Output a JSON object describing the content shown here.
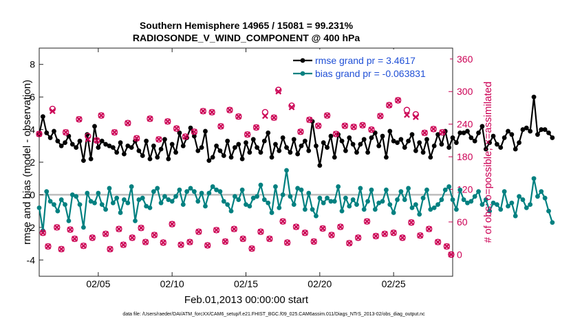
{
  "chart_data": {
    "type": "line",
    "title_line1": "Southern Hemisphere 14965 / 15081 = 99.231%",
    "title_line2": "RADIOSONDE_V_WIND_COMPONENT @ 400 hPa",
    "xlabel": "Feb.01,2013 00:00:00 start",
    "ylabel_left": "rmse and bias (model - observation)",
    "ylabel_right": "# of obs: o=possible; ×=assimilated",
    "footnote": "data file: /Users/raeder/DAI/ATM_forcXX/CAM6_setup/f.e21.FHIST_BGC.f09_025.CAM6assim.011/Diags_NTrS_2013-02/obs_diag_output.nc",
    "x_range_days": [
      1.0,
      29.0
    ],
    "ylim_left": [
      -5,
      9
    ],
    "ylim_right": [
      -40,
      380
    ],
    "x_ticks": [
      {
        "day": 5,
        "label": "02/05"
      },
      {
        "day": 10,
        "label": "02/10"
      },
      {
        "day": 15,
        "label": "02/15"
      },
      {
        "day": 20,
        "label": "02/20"
      },
      {
        "day": 25,
        "label": "02/25"
      }
    ],
    "y_ticks_left": [
      "-4",
      "-2",
      "0",
      "2",
      "4",
      "6",
      "8"
    ],
    "y_ticks_right": [
      "0",
      "60",
      "120",
      "180",
      "240",
      "300",
      "360"
    ],
    "colors": {
      "rmse": "#000000",
      "bias": "#008080",
      "obs": "#cc0055",
      "legend_text": "#1f4fd6",
      "zero_line": "#bdbdbd"
    },
    "legend": [
      {
        "key": "rmse",
        "label": "rmse grand pr = 3.4617"
      },
      {
        "key": "bias",
        "label": "bias grand pr = -0.063831"
      }
    ],
    "x_step_days": 0.25,
    "x_start_day": 1.0,
    "series": [
      {
        "name": "rmse",
        "values": [
          3.7,
          4.8,
          3.8,
          3.5,
          3.9,
          3.3,
          3.0,
          3.2,
          3.6,
          3.1,
          2.9,
          3.3,
          2.1,
          3.7,
          2.2,
          4.2,
          2.9,
          3.3,
          3.1,
          3.0,
          2.9,
          2.6,
          3.2,
          2.5,
          3.0,
          2.9,
          3.3,
          2.7,
          2.4,
          3.3,
          2.2,
          3.0,
          2.3,
          2.8,
          3.4,
          2.2,
          3.1,
          2.6,
          3.8,
          3.0,
          3.5,
          4.1,
          3.6,
          2.7,
          2.9,
          3.9,
          2.1,
          2.3,
          3.0,
          2.7,
          2.4,
          3.3,
          2.3,
          2.9,
          3.1,
          2.2,
          3.2,
          2.6,
          3.4,
          2.9,
          2.6,
          3.3,
          3.8,
          2.3,
          3.1,
          2.7,
          3.5,
          2.9,
          2.6,
          3.4,
          2.5,
          3.0,
          3.3,
          2.7,
          4.5,
          3.0,
          1.8,
          3.2,
          2.9,
          3.6,
          2.3,
          3.7,
          3.3,
          2.7,
          3.5,
          3.1,
          2.6,
          3.1,
          3.4,
          2.6,
          3.5,
          3.8,
          3.0,
          3.6,
          2.3,
          3.9,
          3.3,
          3.2,
          3.4,
          2.9,
          3.3,
          3.7,
          2.7,
          3.2,
          2.6,
          3.4,
          2.3,
          3.0,
          3.7,
          3.1,
          3.9,
          2.9,
          3.5,
          3.2,
          3.8,
          3.8,
          3.9,
          3.5,
          3.3,
          3.8,
          4.2,
          2.8,
          3.2,
          3.6,
          3.1,
          2.9,
          3.5,
          3.9,
          3.7,
          2.8,
          3.2,
          4.0,
          4.1,
          3.9,
          6.0,
          3.7,
          4.0,
          4.0,
          3.8,
          3.5
        ]
      },
      {
        "name": "bias",
        "values": [
          -0.8,
          -2.2,
          0.2,
          -0.4,
          -0.6,
          -1.0,
          -0.3,
          -0.6,
          -1.6,
          0.0,
          -0.1,
          -0.6,
          -2.0,
          0.1,
          -0.4,
          -0.5,
          0.1,
          -0.6,
          -0.9,
          0.4,
          -0.5,
          -0.2,
          -1.1,
          -0.3,
          -0.5,
          0.5,
          -1.6,
          -0.3,
          -0.2,
          -0.7,
          -0.8,
          0.2,
          0.4,
          -0.5,
          -0.1,
          -0.3,
          -0.4,
          -0.1,
          0.3,
          -0.6,
          0.2,
          0.4,
          0.2,
          -0.4,
          0.1,
          -0.7,
          0.1,
          0.5,
          0.3,
          0.2,
          -0.4,
          -0.6,
          -1.0,
          -0.1,
          -0.3,
          0.3,
          -0.6,
          -0.7,
          -0.2,
          -0.1,
          0.6,
          -0.3,
          -0.5,
          -1.1,
          0.5,
          -0.8,
          0.0,
          1.5,
          -0.1,
          -0.6,
          0.4,
          0.3,
          -0.9,
          0.1,
          -0.9,
          -1.3,
          -0.2,
          -0.5,
          -0.2,
          -0.4,
          -0.4,
          0.5,
          -1.0,
          -0.2,
          -0.7,
          -0.3,
          -0.6,
          0.4,
          -0.9,
          -0.4,
          0.3,
          -0.9,
          -0.5,
          -0.4,
          0.3,
          -0.6,
          -1.1,
          -0.3,
          0.2,
          -0.3,
          0.4,
          -0.8,
          -0.6,
          -1.2,
          -0.2,
          0.3,
          -0.9,
          -0.8,
          -0.6,
          -0.3,
          0.3,
          0.5,
          -0.3,
          -0.9,
          0.3,
          -0.3,
          -0.5,
          -0.4,
          -0.1,
          0.2,
          -0.6,
          -0.3,
          -1.0,
          -0.5,
          -0.6,
          -0.9,
          0.2,
          -0.7,
          -0.5,
          -1.3,
          -0.1,
          -0.3,
          -0.8,
          -0.6,
          1.0,
          -0.1,
          0.2,
          -0.2,
          -1.0,
          -1.7
        ]
      },
      {
        "name": "obs_possible",
        "x_days": [
          1.0,
          1.25,
          1.6,
          1.9,
          2.2,
          2.5,
          2.8,
          3.1,
          3.4,
          3.7,
          4.0,
          4.3,
          4.6,
          4.9,
          5.2,
          5.5,
          5.8,
          6.1,
          6.4,
          6.7,
          7.0,
          7.3,
          7.6,
          7.9,
          8.2,
          8.5,
          8.8,
          9.1,
          9.4,
          9.7,
          10.0,
          10.3,
          10.6,
          10.9,
          11.2,
          11.5,
          11.8,
          12.1,
          12.4,
          12.7,
          13.0,
          13.3,
          13.6,
          13.9,
          14.2,
          14.5,
          14.8,
          15.1,
          15.4,
          15.7,
          16.0,
          16.3,
          16.6,
          16.9,
          17.2,
          17.5,
          17.8,
          18.1,
          18.4,
          18.7,
          19.0,
          19.3,
          19.6,
          19.9,
          20.2,
          20.5,
          20.8,
          21.1,
          21.4,
          21.7,
          22.0,
          22.3,
          22.6,
          22.9,
          23.2,
          23.5,
          23.8,
          24.1,
          24.4,
          24.7,
          25.0,
          25.3,
          25.6,
          25.9,
          26.2,
          26.5,
          26.8,
          27.1,
          27.4,
          27.7,
          28.0,
          28.3,
          28.6,
          28.9
        ],
        "values": [
          222,
          40,
          15,
          268,
          50,
          10,
          225,
          46,
          29,
          249,
          16,
          218,
          31,
          210,
          256,
          38,
          10,
          225,
          47,
          18,
          242,
          31,
          214,
          49,
          23,
          250,
          36,
          212,
          22,
          245,
          56,
          232,
          18,
          217,
          23,
          226,
          42,
          264,
          17,
          262,
          45,
          236,
          24,
          266,
          47,
          254,
          29,
          221,
          11,
          234,
          42,
          262,
          29,
          252,
          303,
          61,
          22,
          274,
          51,
          226,
          40,
          248,
          24,
          237,
          48,
          256,
          36,
          222,
          51,
          237,
          21,
          235,
          31,
          238,
          61,
          230,
          34,
          255,
          38,
          275,
          40,
          284,
          31,
          266,
          59,
          258,
          35,
          224,
          47,
          231,
          23,
          225,
          15,
          0
        ]
      },
      {
        "name": "obs_assimilated",
        "x_days": [
          1.0,
          1.25,
          1.6,
          1.9,
          2.2,
          2.5,
          2.8,
          3.1,
          3.4,
          3.7,
          4.0,
          4.3,
          4.6,
          4.9,
          5.2,
          5.5,
          5.8,
          6.1,
          6.4,
          6.7,
          7.0,
          7.3,
          7.6,
          7.9,
          8.2,
          8.5,
          8.8,
          9.1,
          9.4,
          9.7,
          10.0,
          10.3,
          10.6,
          10.9,
          11.2,
          11.5,
          11.8,
          12.1,
          12.4,
          12.7,
          13.0,
          13.3,
          13.6,
          13.9,
          14.2,
          14.5,
          14.8,
          15.1,
          15.4,
          15.7,
          16.0,
          16.3,
          16.6,
          16.9,
          17.2,
          17.5,
          17.8,
          18.1,
          18.4,
          18.7,
          19.0,
          19.3,
          19.6,
          19.9,
          20.2,
          20.5,
          20.8,
          21.1,
          21.4,
          21.7,
          22.0,
          22.3,
          22.6,
          22.9,
          23.2,
          23.5,
          23.8,
          24.1,
          24.4,
          24.7,
          25.0,
          25.3,
          25.6,
          25.9,
          26.2,
          26.5,
          26.8,
          27.1,
          27.4,
          27.7,
          28.0,
          28.3,
          28.6,
          28.9
        ],
        "values": [
          222,
          40,
          15,
          264,
          50,
          10,
          225,
          46,
          29,
          249,
          16,
          212,
          31,
          210,
          256,
          38,
          10,
          225,
          47,
          18,
          242,
          31,
          214,
          49,
          23,
          250,
          36,
          212,
          22,
          245,
          56,
          232,
          18,
          217,
          23,
          226,
          42,
          264,
          17,
          262,
          45,
          236,
          24,
          266,
          47,
          254,
          29,
          221,
          11,
          234,
          42,
          255,
          29,
          252,
          300,
          61,
          22,
          271,
          51,
          226,
          40,
          248,
          24,
          237,
          48,
          256,
          36,
          222,
          51,
          237,
          21,
          235,
          31,
          238,
          61,
          230,
          34,
          255,
          38,
          275,
          40,
          284,
          31,
          257,
          59,
          253,
          35,
          224,
          47,
          231,
          23,
          225,
          15,
          0
        ]
      }
    ]
  }
}
